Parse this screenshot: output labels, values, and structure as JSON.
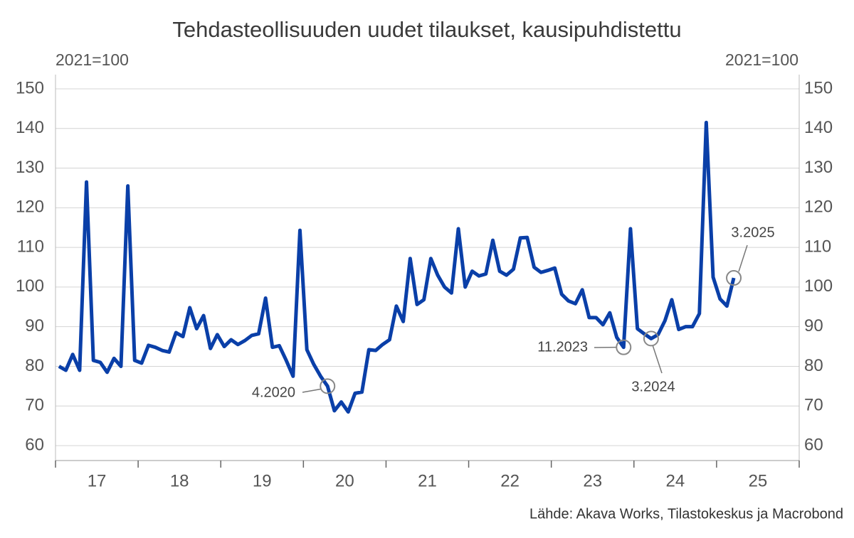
{
  "chart_data": {
    "type": "line",
    "title": "Tehdasteollisuuden uudet tilaukset, kausipuhdistettu",
    "ylabel": "2021=100",
    "y2label": "2021=100",
    "source": "Lähde: Akava Works, Tilastokeskus ja Macrobond",
    "xlim": [
      17,
      26
    ],
    "xticks": [
      {
        "value": 17.5,
        "label": "17"
      },
      {
        "value": 18.5,
        "label": "18"
      },
      {
        "value": 19.5,
        "label": "19"
      },
      {
        "value": 20.5,
        "label": "20"
      },
      {
        "value": 21.5,
        "label": "21"
      },
      {
        "value": 22.5,
        "label": "22"
      },
      {
        "value": 23.5,
        "label": "23"
      },
      {
        "value": 24.5,
        "label": "24"
      },
      {
        "value": 25.5,
        "label": "25"
      }
    ],
    "ylim": [
      60,
      150
    ],
    "yticks": [
      60,
      70,
      80,
      90,
      100,
      110,
      120,
      130,
      140,
      150
    ],
    "y2lim": [
      60,
      150
    ],
    "y2ticks": [
      60,
      70,
      80,
      90,
      100,
      110,
      120,
      130,
      140,
      150
    ],
    "grid": true,
    "x": [
      17.042,
      17.125,
      17.208,
      17.292,
      17.375,
      17.458,
      17.542,
      17.625,
      17.708,
      17.792,
      17.875,
      17.958,
      18.042,
      18.125,
      18.208,
      18.292,
      18.375,
      18.458,
      18.542,
      18.625,
      18.708,
      18.792,
      18.875,
      18.958,
      19.042,
      19.125,
      19.208,
      19.292,
      19.375,
      19.458,
      19.542,
      19.625,
      19.708,
      19.792,
      19.875,
      19.958,
      20.042,
      20.125,
      20.208,
      20.292,
      20.375,
      20.458,
      20.542,
      20.625,
      20.708,
      20.792,
      20.875,
      20.958,
      21.042,
      21.125,
      21.208,
      21.292,
      21.375,
      21.458,
      21.542,
      21.625,
      21.708,
      21.792,
      21.875,
      21.958,
      22.042,
      22.125,
      22.208,
      22.292,
      22.375,
      22.458,
      22.542,
      22.625,
      22.708,
      22.792,
      22.875,
      22.958,
      23.042,
      23.125,
      23.208,
      23.292,
      23.375,
      23.458,
      23.542,
      23.625,
      23.708,
      23.792,
      23.875,
      23.958,
      24.042,
      24.125,
      24.208,
      24.292,
      24.375,
      24.458,
      24.542,
      24.625,
      24.708,
      24.792,
      24.875,
      24.958,
      25.042,
      25.125,
      25.208
    ],
    "series": [
      {
        "color": "#0a3fa8",
        "values": [
          80,
          79,
          83,
          79,
          126.5,
          81.5,
          81,
          78.5,
          82,
          80,
          125.5,
          81.5,
          80.8,
          85.3,
          84.8,
          84,
          83.6,
          88.5,
          87.5,
          94.8,
          89.5,
          92.8,
          84.5,
          88,
          85,
          86.7,
          85.5,
          86.5,
          87.8,
          88.2,
          97.2,
          84.8,
          85.2,
          81.5,
          77.5,
          114.3,
          84.2,
          80.5,
          77.5,
          75,
          68.8,
          71,
          68.5,
          73.2,
          73.5,
          84.2,
          84,
          85.5,
          86.7,
          95.2,
          91.3,
          107.2,
          95.6,
          96.8,
          107.2,
          103,
          100,
          98.5,
          114.7,
          100,
          104,
          102.8,
          103.3,
          111.8,
          104,
          103,
          104.5,
          112.4,
          112.5,
          105,
          103.7,
          104.2,
          104.8,
          98.2,
          96.5,
          95.8,
          99.3,
          92.3,
          92.3,
          90.5,
          93.5,
          87.3,
          84.8,
          114.7,
          89.5,
          88.2,
          87,
          88,
          91.5,
          96.8,
          89.3,
          90,
          90,
          93.3,
          141.5,
          102.5,
          97,
          95.2,
          102.3
        ]
      }
    ],
    "annotations": [
      {
        "text": "4.2020"
      },
      {
        "text": "11.2023"
      },
      {
        "text": "3.2024"
      },
      {
        "text": "3.2025"
      }
    ]
  }
}
